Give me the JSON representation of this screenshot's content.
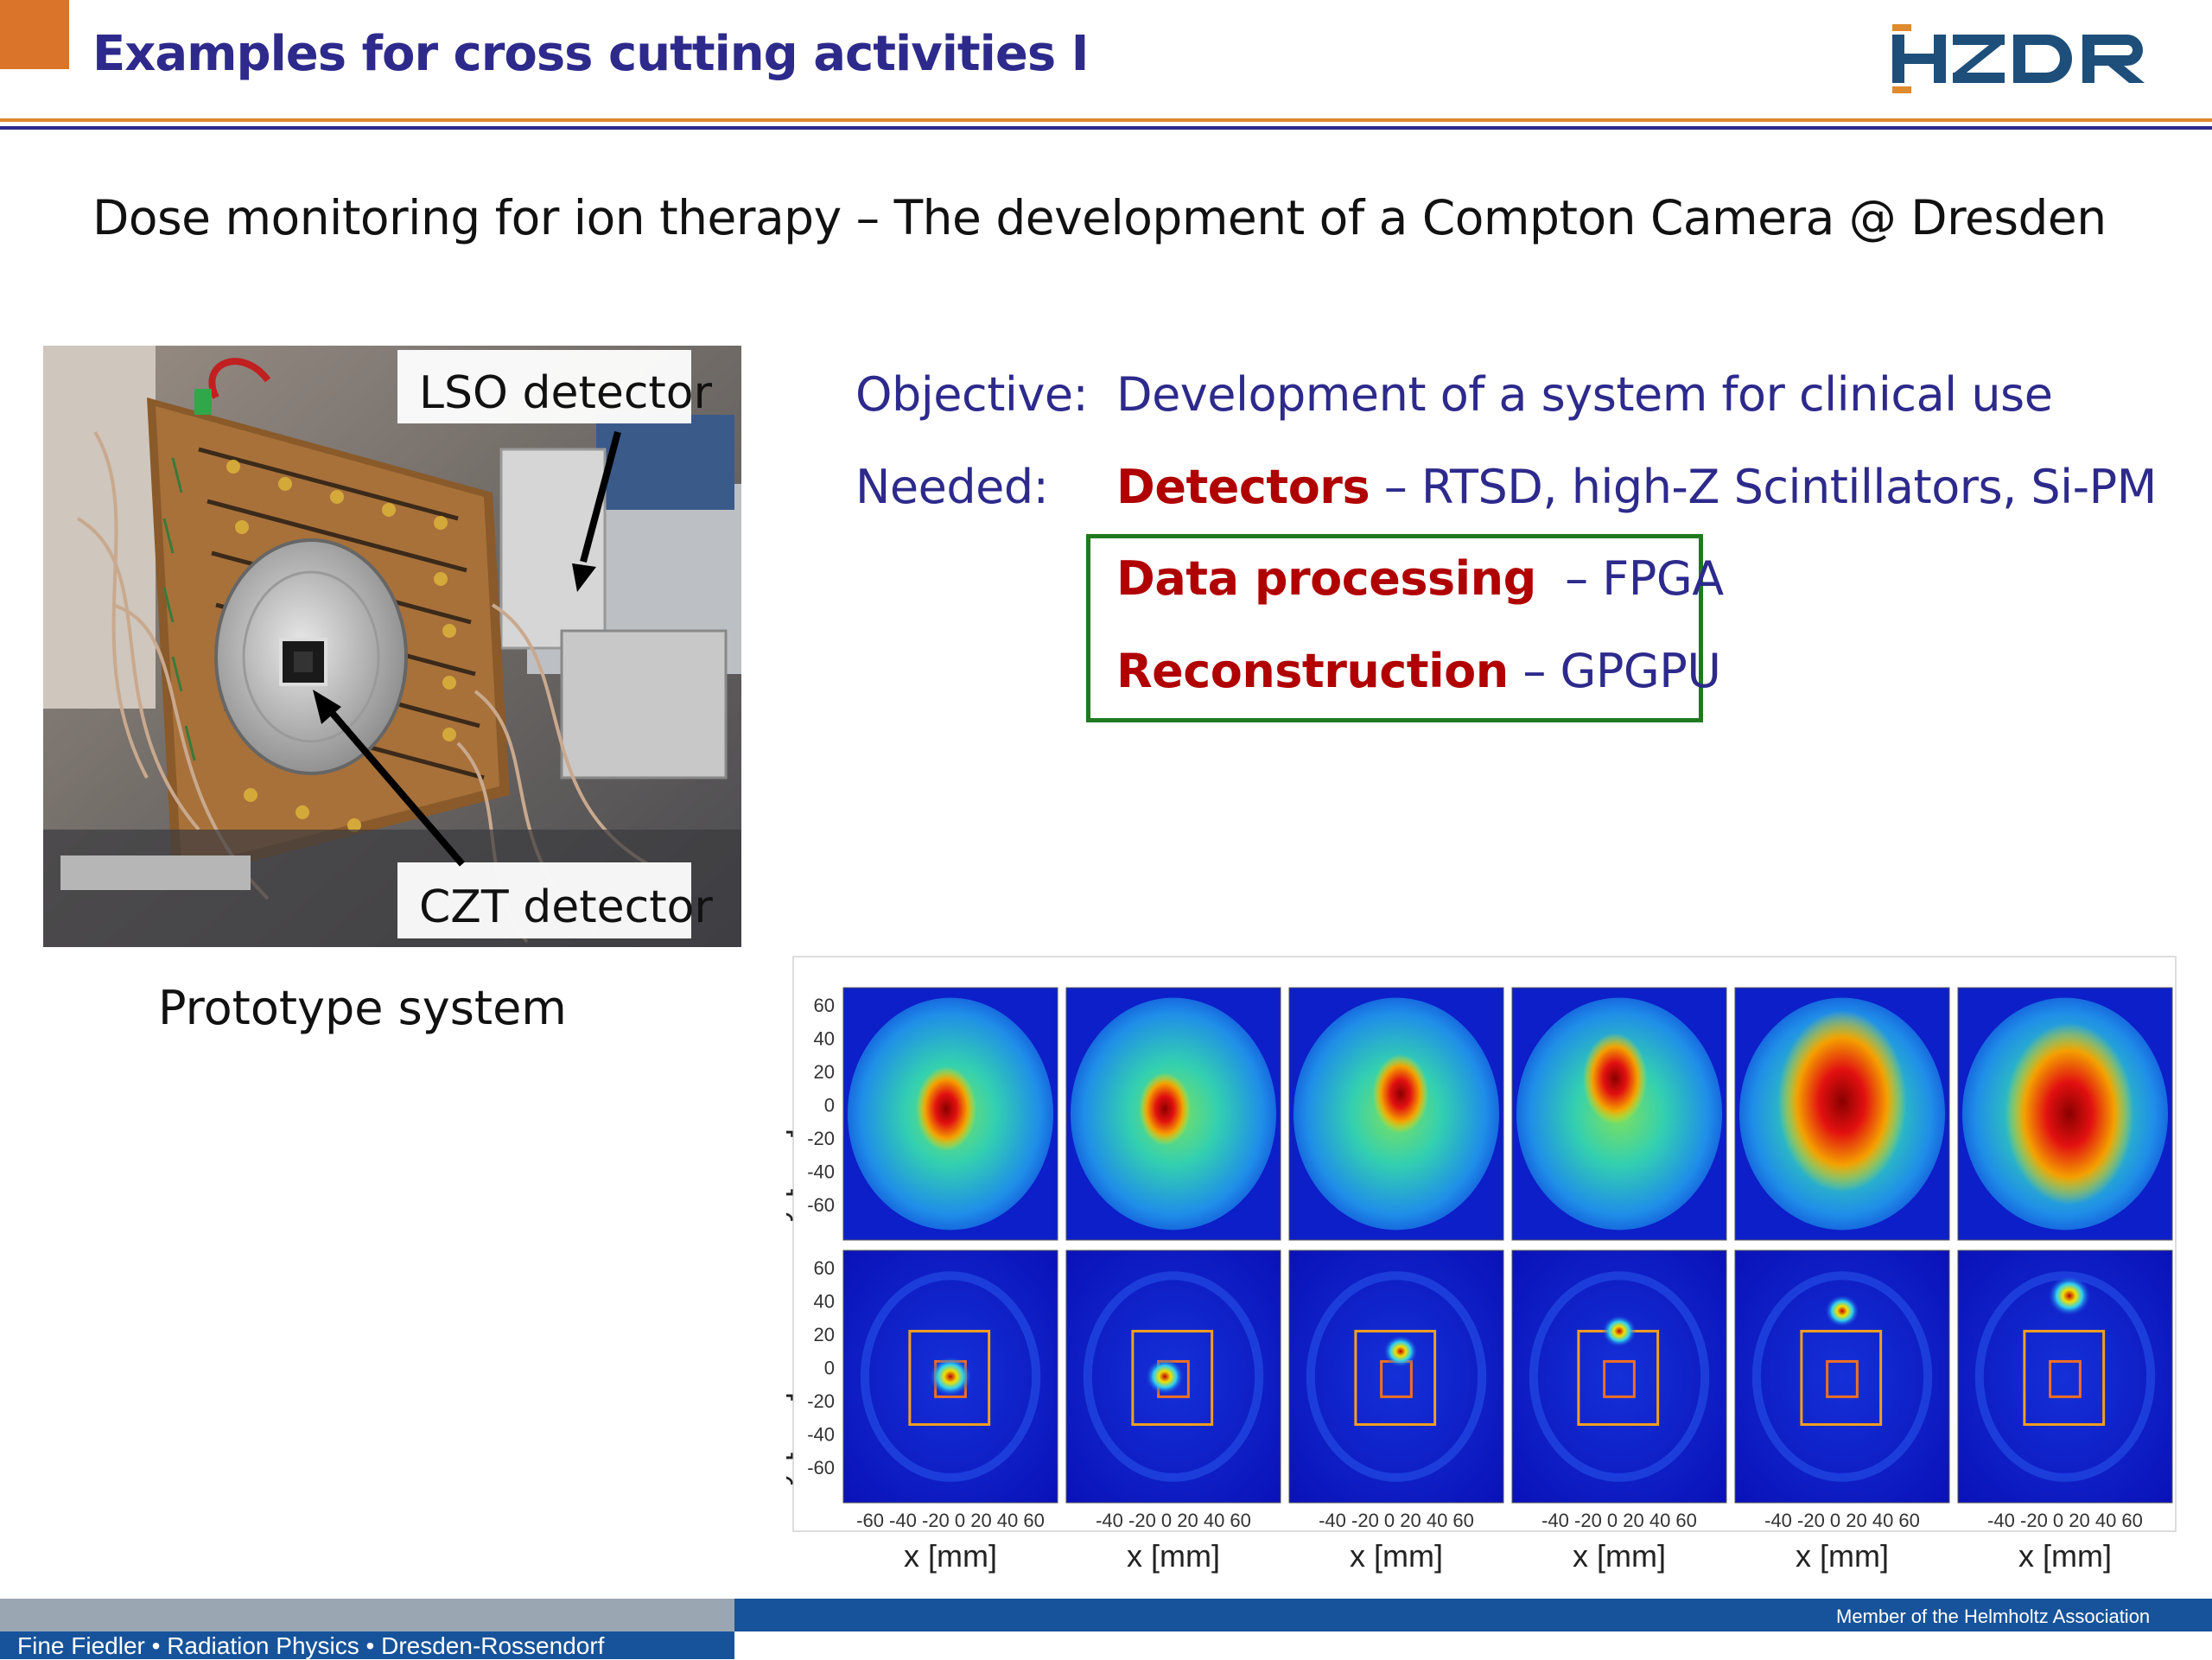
{
  "slide": {
    "title": "Examples for cross cutting activities I",
    "logo_text": "HZDR",
    "subtitle": "Dose monitoring for ion therapy – The development of a Compton Camera @ Dresden"
  },
  "photo": {
    "label_lso": "LSO detector",
    "label_czt": "CZT detector",
    "caption": "Prototype system"
  },
  "objective": {
    "label": "Objective:",
    "text": "Development of a system for clinical use"
  },
  "needed": {
    "label": "Needed:",
    "detectors_bold": "Detectors",
    "detectors_rest": " – RTSD, high-Z Scintillators, Si-PM",
    "data_bold": "Data processing",
    "data_rest": "  – FPGA",
    "recon_bold": "Reconstruction",
    "recon_rest": " – GPGPU"
  },
  "figure": {
    "y_label": "y [mm]",
    "x_label": "x [mm]",
    "y_ticks": [
      "60",
      "40",
      "20",
      "0",
      "-20",
      "-40",
      "-60"
    ],
    "x_ticks_first": "-60 -40 -20  0  20  40  60",
    "x_ticks_other": "-40 -20  0  20  40  60",
    "panels_per_row": 6,
    "rows": 2
  },
  "footer": {
    "left": "Fine Fiedler • Radiation Physics • Dresden-Rossendorf",
    "right": "Member of the Helmholtz Association"
  },
  "colors": {
    "title_blue": "#2d2a8c",
    "accent_orange": "#e0892d",
    "highlight_red": "#b00000",
    "box_green": "#1f7a1f",
    "footer_blue": "#17539a"
  }
}
